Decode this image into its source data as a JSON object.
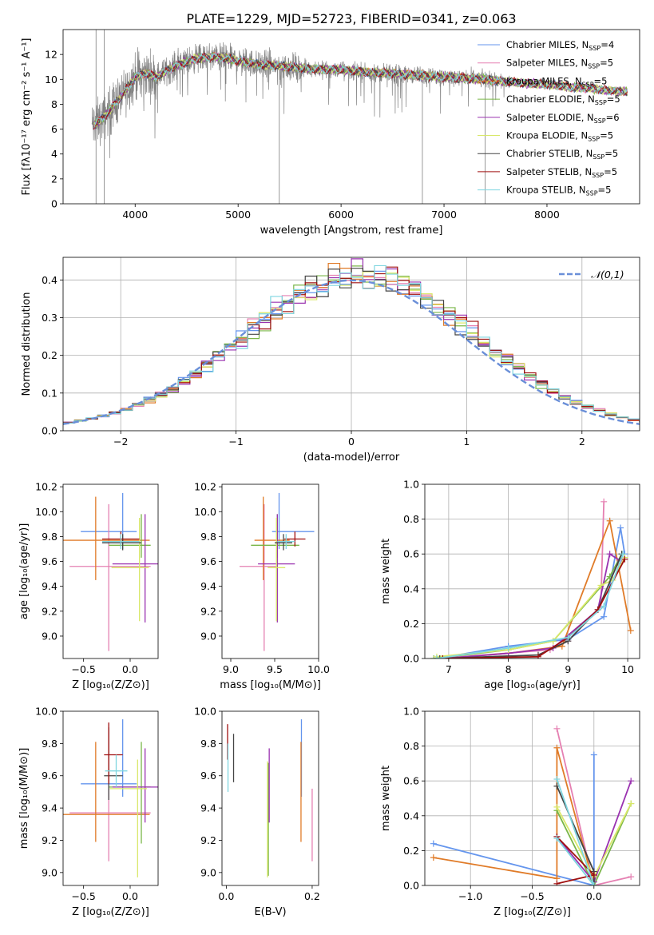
{
  "title": "PLATE=1229, MJD=52723, FIBERID=0341, z=0.063",
  "colors": {
    "Chabrier MILES": "#6495ed",
    "Salpeter MILES": "#e580b2",
    "Kroupa MILES": "#e07b28",
    "Chabrier ELODIE": "#7ab648",
    "Salpeter ELODIE": "#9a32b0",
    "Kroupa ELODIE": "#d9e86a",
    "Chabrier STELIB": "#444444",
    "Salpeter STELIB": "#a01010",
    "Kroupa STELIB": "#7fd6e0",
    "data": "#808080",
    "normal": "#6a8fd8",
    "grid": "#b0b0b0"
  },
  "legend_labels": {
    "Chabrier MILES": [
      "Chabrier MILES, N",
      "SSP",
      "=4"
    ],
    "Salpeter MILES": [
      "Salpeter MILES, N",
      "SSP",
      "=5"
    ],
    "Kroupa MILES": [
      "Kroupa MILES, N",
      "SSP",
      "=5"
    ],
    "Chabrier ELODIE": [
      "Chabrier ELODIE, N",
      "SSP",
      "=5"
    ],
    "Salpeter ELODIE": [
      "Salpeter ELODIE, N",
      "SSP",
      "=6"
    ],
    "Kroupa ELODIE": [
      "Kroupa ELODIE, N",
      "SSP",
      "=5"
    ],
    "Chabrier STELIB": [
      "Chabrier STELIB, N",
      "SSP",
      "=5"
    ],
    "Salpeter STELIB": [
      "Salpeter STELIB, N",
      "SSP",
      "=5"
    ],
    "Kroupa STELIB": [
      "Kroupa STELIB, N",
      "SSP",
      "=5"
    ]
  },
  "chart_data": [
    {
      "id": "spectrum",
      "type": "line",
      "xlabel": "wavelength [Angstrom, rest frame]",
      "ylabel": "Flux [fλ10⁻¹⁷ erg cm⁻² s⁻¹ A⁻¹]",
      "xlim": [
        3300,
        8900
      ],
      "ylim": [
        0,
        14
      ],
      "xticks": [
        4000,
        5000,
        6000,
        7000,
        8000
      ],
      "yticks": [
        0,
        2,
        4,
        6,
        8,
        10,
        12
      ],
      "legend_position": "upper right",
      "continuum": {
        "x": [
          3600,
          3700,
          3800,
          3900,
          4000,
          4100,
          4200,
          4400,
          4600,
          4800,
          5000,
          5200,
          5400,
          5600,
          5800,
          6000,
          6200,
          6400,
          6600,
          6800,
          7000,
          7200,
          7400,
          7600,
          7800,
          8000,
          8200,
          8400,
          8600,
          8800
        ],
        "y": [
          6.3,
          7.0,
          8.0,
          9.0,
          10.2,
          10.5,
          10.2,
          11.1,
          11.7,
          11.8,
          11.5,
          11.2,
          11.1,
          10.9,
          10.8,
          10.8,
          10.6,
          10.5,
          10.4,
          10.3,
          10.2,
          10.1,
          10.0,
          9.8,
          9.7,
          9.6,
          9.4,
          9.3,
          9.1,
          9.0
        ]
      },
      "data_range": [
        3580,
        7640
      ],
      "model_range": [
        3600,
        8780
      ],
      "spikes": [
        {
          "x": 3620,
          "ymin": 0,
          "ymax": 14
        },
        {
          "x": 3700,
          "ymin": 0,
          "ymax": 14
        },
        {
          "x": 5400,
          "ymin": 0,
          "ymax": 11.0
        },
        {
          "x": 6790,
          "ymin": 0,
          "ymax": 10.3
        },
        {
          "x": 7400,
          "ymin": 0,
          "ymax": 10.0
        }
      ]
    },
    {
      "id": "residuals",
      "type": "histogram",
      "xlabel": "(data-model)/error",
      "ylabel": "Normed distribution",
      "xlim": [
        -2.5,
        2.5
      ],
      "ylim": [
        0,
        0.46
      ],
      "xticks": [
        -2,
        -1,
        0,
        1,
        2
      ],
      "yticks": [
        0.0,
        0.1,
        0.2,
        0.3,
        0.4
      ],
      "grid": true,
      "bin_width": 0.1,
      "normal_label": "𝒩(0,1)",
      "legend_position": "upper right"
    },
    {
      "id": "age_vs_Z",
      "type": "errorbar",
      "xlabel": "Z [log₁₀(Z/Z⊙)]",
      "ylabel": "age  [log₁₀(age/yr)]",
      "xlim": [
        -0.72,
        0.3
      ],
      "ylim": [
        8.82,
        10.22
      ],
      "xticks": [
        -0.5,
        0.0
      ],
      "yticks": [
        9.0,
        9.2,
        9.4,
        9.6,
        9.8,
        10.0,
        10.2
      ],
      "points": [
        {
          "model": "Chabrier MILES",
          "x": -0.08,
          "xerr": [
            0.45,
            0.15
          ],
          "y": 9.84,
          "yerr": [
            0.14,
            0.31
          ]
        },
        {
          "model": "Salpeter MILES",
          "x": -0.23,
          "xerr": [
            0.42,
            0.45
          ],
          "y": 9.56,
          "yerr": [
            0.68,
            0.5
          ]
        },
        {
          "model": "Kroupa MILES",
          "x": -0.37,
          "xerr": [
            0.35,
            0.58
          ],
          "y": 9.77,
          "yerr": [
            0.32,
            0.35
          ]
        },
        {
          "model": "Chabrier ELODIE",
          "x": 0.12,
          "xerr": [
            0.35,
            0.1
          ],
          "y": 9.73,
          "yerr": [
            0.1,
            0.25
          ]
        },
        {
          "model": "Salpeter ELODIE",
          "x": 0.16,
          "xerr": [
            0.35,
            0.15
          ],
          "y": 9.58,
          "yerr": [
            0.47,
            0.4
          ]
        },
        {
          "model": "Kroupa ELODIE",
          "x": 0.1,
          "xerr": [
            0.3,
            0.1
          ],
          "y": 9.55,
          "yerr": [
            0.43,
            0.4
          ]
        },
        {
          "model": "Chabrier STELIB",
          "x": -0.08,
          "xerr": [
            0.22,
            0.2
          ],
          "y": 9.75,
          "yerr": [
            0.06,
            0.07
          ]
        },
        {
          "model": "Salpeter STELIB",
          "x": -0.1,
          "xerr": [
            0.2,
            0.2
          ],
          "y": 9.78,
          "yerr": [
            0.06,
            0.06
          ]
        },
        {
          "model": "Kroupa STELIB",
          "x": -0.1,
          "xerr": [
            0.2,
            0.2
          ],
          "y": 9.76,
          "yerr": [
            0.06,
            0.06
          ]
        }
      ]
    },
    {
      "id": "age_vs_mass",
      "type": "errorbar",
      "xlabel": "mass [log₁₀(M/M⊙)]",
      "ylabel": "",
      "xlim": [
        8.9,
        10.0
      ],
      "ylim": [
        8.82,
        10.22
      ],
      "xticks": [
        9.0,
        9.5,
        10.0
      ],
      "yticks": [
        9.0,
        9.2,
        9.4,
        9.6,
        9.8,
        10.0,
        10.2
      ],
      "points": [
        {
          "model": "Chabrier MILES",
          "x": 9.55,
          "xerr": [
            0.08,
            0.4
          ],
          "y": 9.84,
          "yerr": [
            0.14,
            0.31
          ]
        },
        {
          "model": "Salpeter MILES",
          "x": 9.38,
          "xerr": [
            0.28,
            0.15
          ],
          "y": 9.56,
          "yerr": [
            0.68,
            0.5
          ]
        },
        {
          "model": "Kroupa MILES",
          "x": 9.37,
          "xerr": [
            0.1,
            0.3
          ],
          "y": 9.77,
          "yerr": [
            0.32,
            0.35
          ]
        },
        {
          "model": "Chabrier ELODIE",
          "x": 9.53,
          "xerr": [
            0.3,
            0.25
          ],
          "y": 9.73,
          "yerr": [
            0.1,
            0.25
          ]
        },
        {
          "model": "Salpeter ELODIE",
          "x": 9.53,
          "xerr": [
            0.22,
            0.2
          ],
          "y": 9.58,
          "yerr": [
            0.47,
            0.4
          ]
        },
        {
          "model": "Kroupa ELODIE",
          "x": 9.52,
          "xerr": [
            0.1,
            0.1
          ],
          "y": 9.55,
          "yerr": [
            0.43,
            0.4
          ]
        },
        {
          "model": "Chabrier STELIB",
          "x": 9.6,
          "xerr": [
            0.1,
            0.1
          ],
          "y": 9.75,
          "yerr": [
            0.06,
            0.07
          ]
        },
        {
          "model": "Salpeter STELIB",
          "x": 9.73,
          "xerr": [
            0.12,
            0.12
          ],
          "y": 9.78,
          "yerr": [
            0.06,
            0.06
          ]
        },
        {
          "model": "Kroupa STELIB",
          "x": 9.63,
          "xerr": [
            0.1,
            0.1
          ],
          "y": 9.76,
          "yerr": [
            0.06,
            0.06
          ]
        }
      ]
    },
    {
      "id": "mass_weight_vs_age",
      "type": "line",
      "xlabel": "age  [log₁₀(age/yr)]",
      "ylabel": "mass weight",
      "xlim": [
        6.6,
        10.2
      ],
      "ylim": [
        0,
        1
      ],
      "xticks": [
        7,
        8,
        9,
        10
      ],
      "yticks": [
        0.0,
        0.2,
        0.4,
        0.6,
        0.8,
        1.0
      ],
      "grid": true,
      "series": [
        {
          "model": "Chabrier MILES",
          "x": [
            6.8,
            8.0,
            9.0,
            9.6,
            9.88,
            9.95
          ],
          "y": [
            0.0,
            0.07,
            0.11,
            0.24,
            0.75,
            0.6
          ]
        },
        {
          "model": "Salpeter MILES",
          "x": [
            6.85,
            8.7,
            9.0,
            9.55,
            9.6
          ],
          "y": [
            0.0,
            0.05,
            0.1,
            0.3,
            0.9
          ]
        },
        {
          "model": "Kroupa MILES",
          "x": [
            6.9,
            8.0,
            8.9,
            9.7,
            10.05
          ],
          "y": [
            0.0,
            0.03,
            0.07,
            0.79,
            0.16
          ]
        },
        {
          "model": "Chabrier ELODIE",
          "x": [
            6.75,
            8.0,
            8.75,
            9.7,
            9.9
          ],
          "y": [
            0.0,
            0.05,
            0.1,
            0.47,
            0.6
          ]
        },
        {
          "model": "Salpeter ELODIE",
          "x": [
            6.9,
            8.0,
            8.75,
            9.5,
            9.7,
            9.88
          ],
          "y": [
            0.0,
            0.03,
            0.06,
            0.28,
            0.6,
            0.56
          ]
        },
        {
          "model": "Kroupa ELODIE",
          "x": [
            6.8,
            8.0,
            8.75,
            9.55,
            9.75,
            9.95
          ],
          "y": [
            0.01,
            0.05,
            0.1,
            0.42,
            0.45,
            0.58
          ]
        },
        {
          "model": "Chabrier STELIB",
          "x": [
            6.85,
            8.5,
            9.0,
            9.5,
            9.9
          ],
          "y": [
            0.0,
            0.02,
            0.1,
            0.28,
            0.6
          ]
        },
        {
          "model": "Salpeter STELIB",
          "x": [
            6.9,
            8.5,
            9.0,
            9.5,
            9.95
          ],
          "y": [
            0.0,
            0.01,
            0.12,
            0.28,
            0.57
          ]
        },
        {
          "model": "Kroupa STELIB",
          "x": [
            6.8,
            8.0,
            9.0,
            9.6,
            9.92
          ],
          "y": [
            0.0,
            0.06,
            0.12,
            0.3,
            0.6
          ]
        }
      ]
    },
    {
      "id": "mass_vs_Z",
      "type": "errorbar",
      "xlabel": "Z [log₁₀(Z/Z⊙)]",
      "ylabel": "mass [log₁₀(M/M⊙)]",
      "xlim": [
        -0.72,
        0.3
      ],
      "ylim": [
        8.92,
        10.0
      ],
      "xticks": [
        -0.5,
        0.0
      ],
      "yticks": [
        9.0,
        9.2,
        9.4,
        9.6,
        9.8,
        10.0
      ],
      "points": [
        {
          "model": "Chabrier MILES",
          "x": -0.08,
          "xerr": [
            0.45,
            0.15
          ],
          "y": 9.55,
          "yerr": [
            0.08,
            0.4
          ]
        },
        {
          "model": "Salpeter MILES",
          "x": -0.23,
          "xerr": [
            0.42,
            0.45
          ],
          "y": 9.37,
          "yerr": [
            0.3,
            0.15
          ]
        },
        {
          "model": "Kroupa MILES",
          "x": -0.37,
          "xerr": [
            0.35,
            0.58
          ],
          "y": 9.36,
          "yerr": [
            0.17,
            0.45
          ]
        },
        {
          "model": "Chabrier ELODIE",
          "x": 0.12,
          "xerr": [
            0.35,
            0.1
          ],
          "y": 9.53,
          "yerr": [
            0.35,
            0.28
          ]
        },
        {
          "model": "Salpeter ELODIE",
          "x": 0.16,
          "xerr": [
            0.35,
            0.15
          ],
          "y": 9.53,
          "yerr": [
            0.22,
            0.24
          ]
        },
        {
          "model": "Kroupa ELODIE",
          "x": 0.08,
          "xerr": [
            0.3,
            0.1
          ],
          "y": 9.52,
          "yerr": [
            0.55,
            0.18
          ]
        },
        {
          "model": "Chabrier STELIB",
          "x": -0.23,
          "xerr": [
            0.05,
            0.15
          ],
          "y": 9.6,
          "yerr": [
            0.15,
            0.3
          ]
        },
        {
          "model": "Salpeter STELIB",
          "x": -0.23,
          "xerr": [
            0.05,
            0.15
          ],
          "y": 9.73,
          "yerr": [
            0.18,
            0.2
          ]
        },
        {
          "model": "Kroupa STELIB",
          "x": -0.15,
          "xerr": [
            0.12,
            0.12
          ],
          "y": 9.63,
          "yerr": [
            0.1,
            0.1
          ]
        }
      ]
    },
    {
      "id": "mass_vs_EBV",
      "type": "errorbar",
      "xlabel": "E(B-V)",
      "ylabel": "",
      "xlim": [
        -0.01,
        0.215
      ],
      "ylim": [
        8.92,
        10.0
      ],
      "xticks": [
        0.0,
        0.2
      ],
      "yticks": [
        9.0,
        9.2,
        9.4,
        9.6,
        9.8,
        10.0
      ],
      "points": [
        {
          "model": "Chabrier MILES",
          "x": 0.175,
          "xerr": [
            0,
            0
          ],
          "y": 9.55,
          "yerr": [
            0.08,
            0.4
          ]
        },
        {
          "model": "Salpeter MILES",
          "x": 0.2,
          "xerr": [
            0,
            0
          ],
          "y": 9.37,
          "yerr": [
            0.3,
            0.15
          ]
        },
        {
          "model": "Kroupa MILES",
          "x": 0.174,
          "xerr": [
            0,
            0
          ],
          "y": 9.36,
          "yerr": [
            0.17,
            0.45
          ]
        },
        {
          "model": "Chabrier ELODIE",
          "x": 0.098,
          "xerr": [
            0,
            0
          ],
          "y": 9.53,
          "yerr": [
            0.55,
            0.15
          ]
        },
        {
          "model": "Salpeter ELODIE",
          "x": 0.1,
          "xerr": [
            0,
            0
          ],
          "y": 9.53,
          "yerr": [
            0.22,
            0.24
          ]
        },
        {
          "model": "Kroupa ELODIE",
          "x": 0.096,
          "xerr": [
            0,
            0
          ],
          "y": 9.45,
          "yerr": [
            0.48,
            0.24
          ]
        },
        {
          "model": "Chabrier STELIB",
          "x": 0.017,
          "xerr": [
            0,
            0
          ],
          "y": 9.72,
          "yerr": [
            0.16,
            0.14
          ]
        },
        {
          "model": "Salpeter STELIB",
          "x": 0.003,
          "xerr": [
            0,
            0
          ],
          "y": 9.8,
          "yerr": [
            0.1,
            0.12
          ]
        },
        {
          "model": "Kroupa STELIB",
          "x": 0.004,
          "xerr": [
            0,
            0
          ],
          "y": 9.65,
          "yerr": [
            0.15,
            0.15
          ]
        }
      ]
    },
    {
      "id": "mass_weight_vs_Z",
      "type": "line",
      "xlabel": "Z [log₁₀(Z/Z⊙)]",
      "ylabel": "mass weight",
      "xlim": [
        -1.37,
        0.37
      ],
      "ylim": [
        0,
        1
      ],
      "xticks": [
        -1.0,
        -0.5,
        0.0
      ],
      "yticks": [
        0.0,
        0.2,
        0.4,
        0.6,
        0.8,
        1.0
      ],
      "grid": true,
      "series": [
        {
          "model": "Chabrier MILES",
          "x": [
            -1.3,
            0.0,
            0.0
          ],
          "y": [
            0.24,
            0.0,
            0.75
          ]
        },
        {
          "model": "Salpeter MILES",
          "x": [
            -0.3,
            0.0,
            0.3
          ],
          "y": [
            0.9,
            0.0,
            0.05
          ]
        },
        {
          "model": "Kroupa MILES",
          "x": [
            -1.3,
            -0.3,
            -0.3,
            0.0
          ],
          "y": [
            0.16,
            0.04,
            0.79,
            0.0
          ]
        },
        {
          "model": "Chabrier ELODIE",
          "x": [
            -0.3,
            0.0,
            0.3
          ],
          "y": [
            0.43,
            0.0,
            0.47
          ]
        },
        {
          "model": "Salpeter ELODIE",
          "x": [
            -0.3,
            0.0,
            0.3
          ],
          "y": [
            0.28,
            0.02,
            0.6
          ]
        },
        {
          "model": "Kroupa ELODIE",
          "x": [
            -0.3,
            0.0,
            0.3
          ],
          "y": [
            0.45,
            0.05,
            0.47
          ]
        },
        {
          "model": "Chabrier STELIB",
          "x": [
            -0.3,
            0.0,
            0.0
          ],
          "y": [
            0.57,
            0.08,
            0.0
          ]
        },
        {
          "model": "Salpeter STELIB",
          "x": [
            -0.3,
            0.0,
            -0.3
          ],
          "y": [
            0.28,
            0.06,
            0.01
          ]
        },
        {
          "model": "Kroupa STELIB",
          "x": [
            -0.3,
            0.0,
            -0.3
          ],
          "y": [
            0.61,
            0.0,
            0.27
          ]
        }
      ]
    }
  ]
}
